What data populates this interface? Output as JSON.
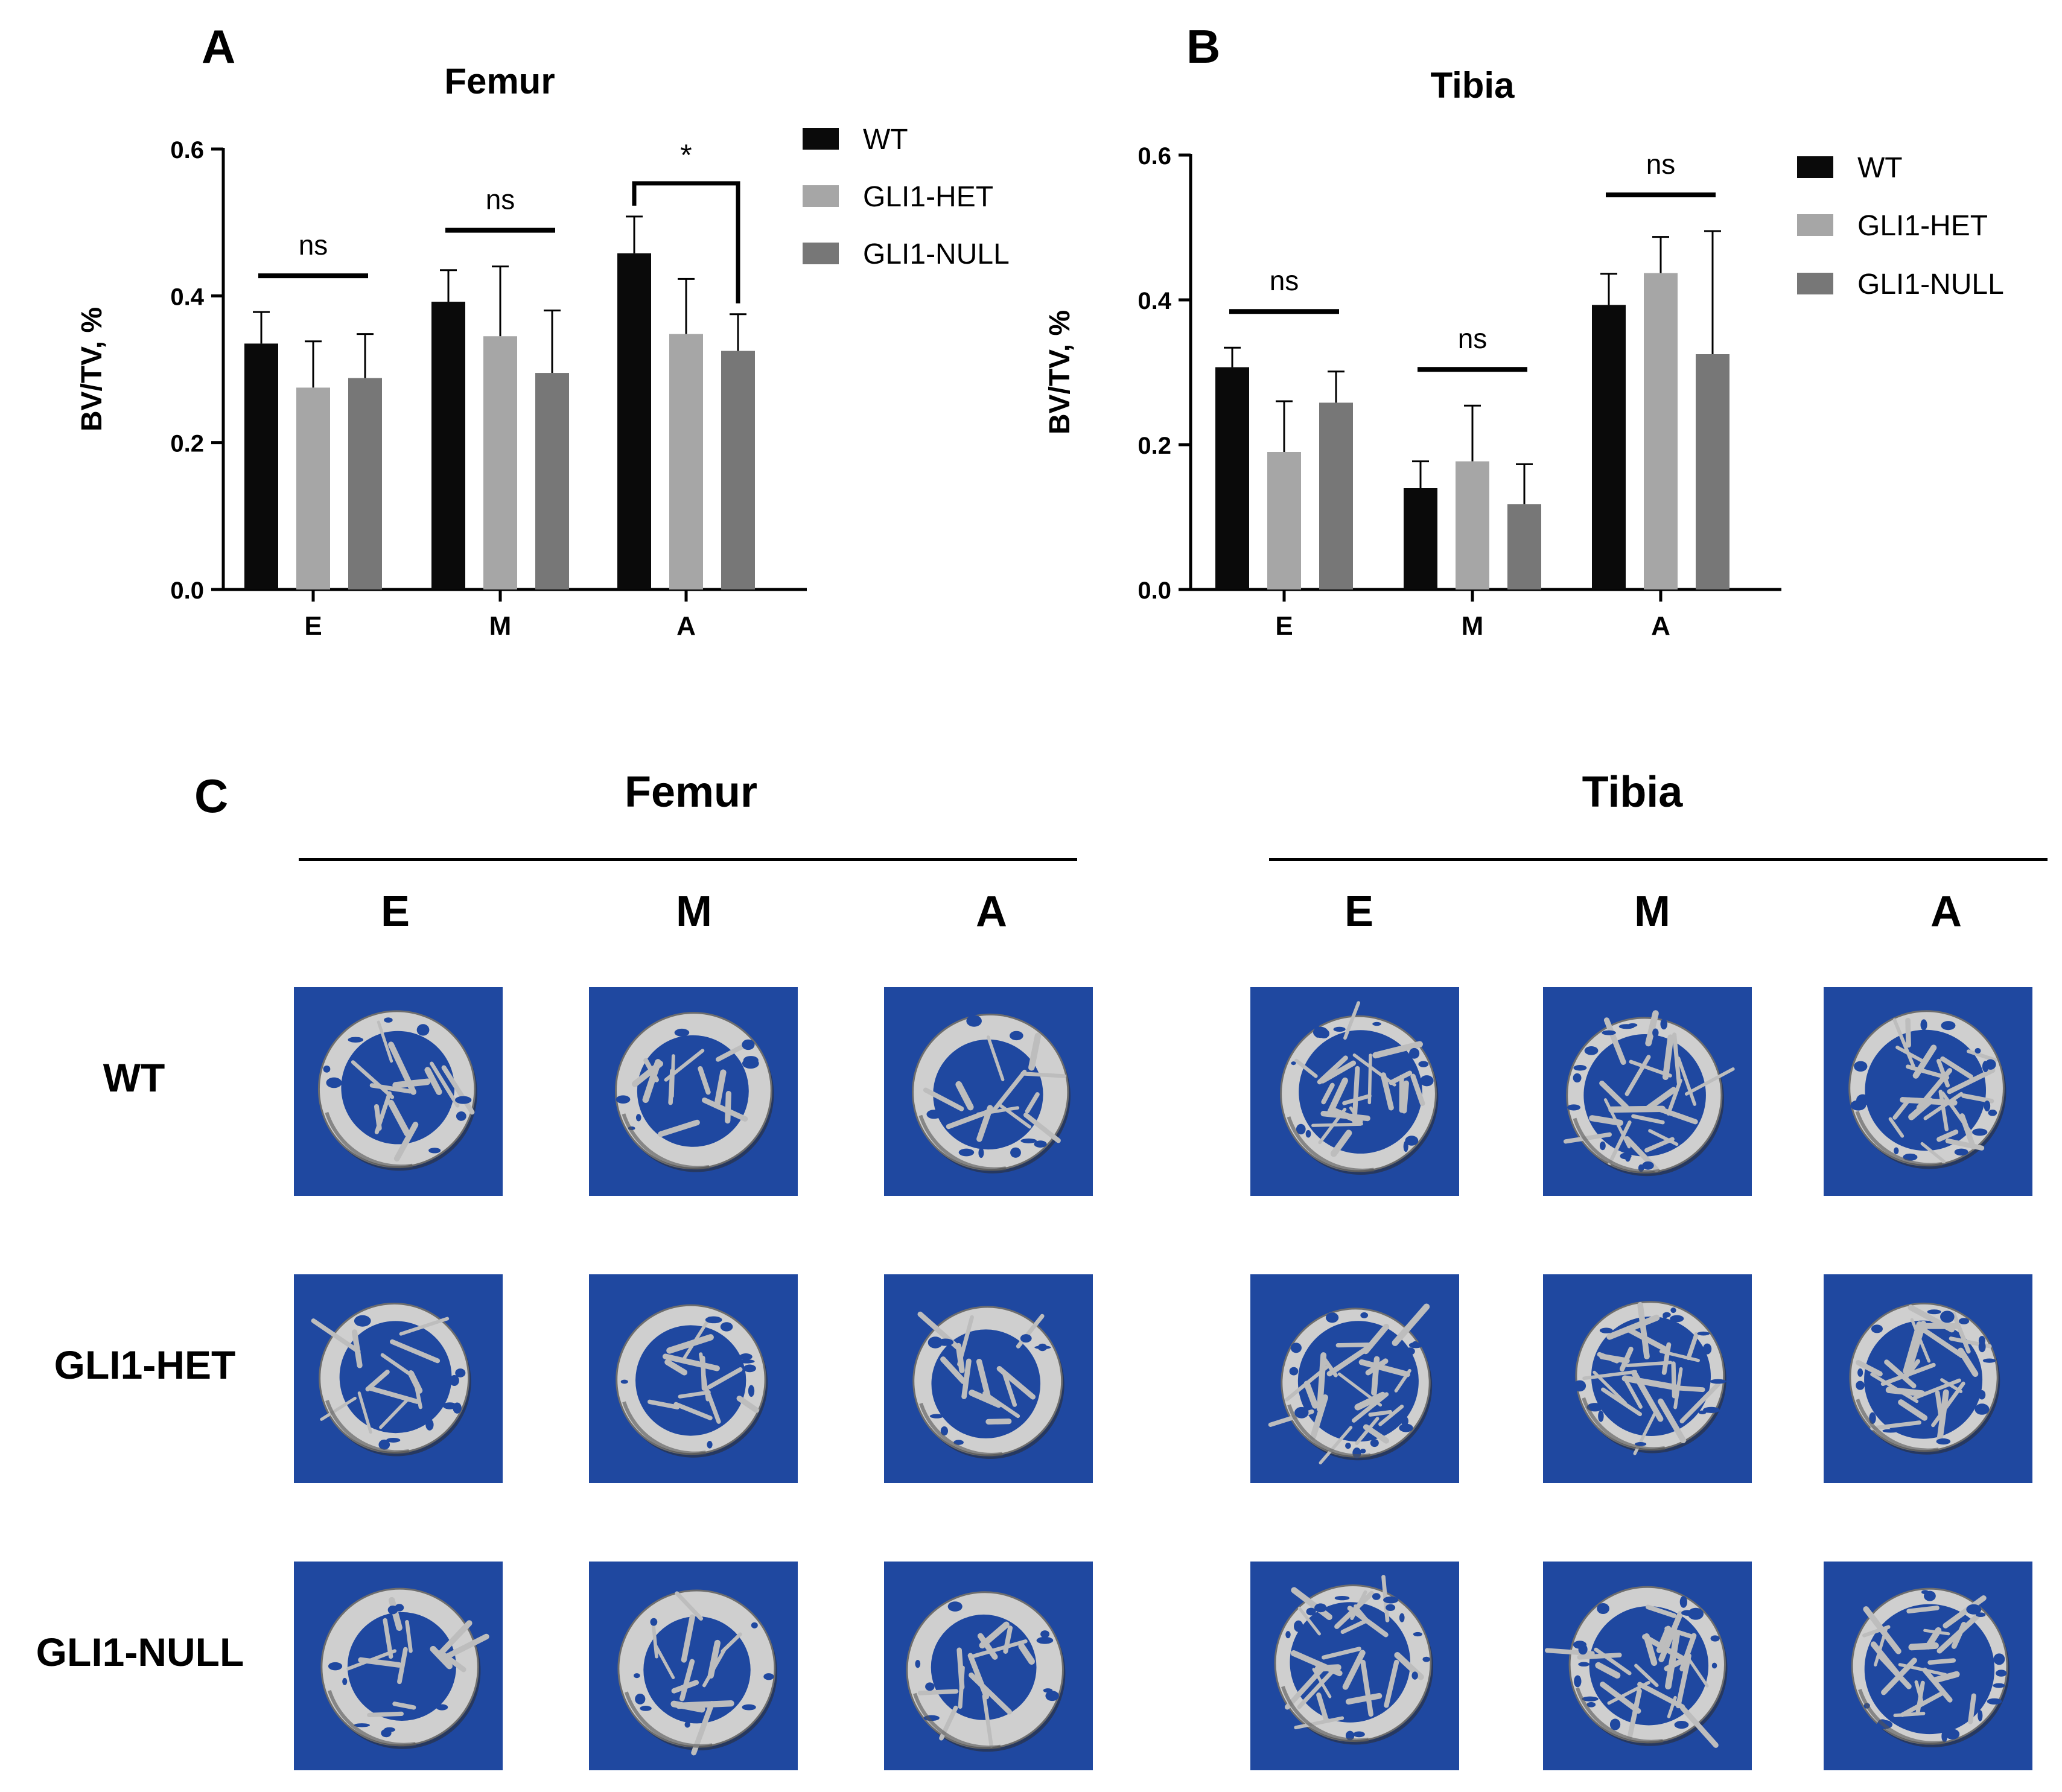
{
  "panel_letters": {
    "a": "A",
    "b": "B",
    "c": "C"
  },
  "colors": {
    "WT": "#0a0a0a",
    "GLI1-HET": "#a6a6a6",
    "GLI1-NULL": "#777777",
    "scan_bg": "#1f48a0",
    "bone": "#c9c9c9"
  },
  "chart_data": [
    {
      "type": "bar",
      "title": "Femur",
      "xlabel": "",
      "ylabel": "BV/TV, %",
      "categories": [
        "E",
        "M",
        "A"
      ],
      "ylim": [
        0,
        0.6
      ],
      "yticks": [
        "0.0",
        "0.2",
        "0.4",
        "0.6"
      ],
      "series": [
        {
          "name": "WT",
          "values": [
            0.335,
            0.392,
            0.458
          ],
          "errors": [
            0.043,
            0.043,
            0.05
          ]
        },
        {
          "name": "GLI1-HET",
          "values": [
            0.275,
            0.345,
            0.348
          ],
          "errors": [
            0.063,
            0.095,
            0.075
          ]
        },
        {
          "name": "GLI1-NULL",
          "values": [
            0.288,
            0.295,
            0.325
          ],
          "errors": [
            0.06,
            0.085,
            0.05
          ]
        }
      ],
      "annotations": [
        {
          "category": "E",
          "text": "ns"
        },
        {
          "category": "M",
          "text": "ns"
        },
        {
          "category": "A",
          "text": "*"
        }
      ],
      "legend": "right"
    },
    {
      "type": "bar",
      "title": "Tibia",
      "xlabel": "",
      "ylabel": "BV/TV, %",
      "categories": [
        "E",
        "M",
        "A"
      ],
      "ylim": [
        0,
        0.6
      ],
      "yticks": [
        "0.0",
        "0.2",
        "0.4",
        "0.6"
      ],
      "series": [
        {
          "name": "WT",
          "values": [
            0.307,
            0.14,
            0.393
          ],
          "errors": [
            0.027,
            0.037,
            0.043
          ]
        },
        {
          "name": "GLI1-HET",
          "values": [
            0.19,
            0.177,
            0.437
          ],
          "errors": [
            0.07,
            0.077,
            0.05
          ]
        },
        {
          "name": "GLI1-NULL",
          "values": [
            0.258,
            0.118,
            0.325
          ],
          "errors": [
            0.043,
            0.055,
            0.17
          ]
        }
      ],
      "annotations": [
        {
          "category": "E",
          "text": "ns"
        },
        {
          "category": "M",
          "text": "ns"
        },
        {
          "category": "A",
          "text": "ns"
        }
      ],
      "legend": "right"
    }
  ],
  "figure_c": {
    "groups": [
      {
        "title": "Femur",
        "columns": [
          "E",
          "M",
          "A"
        ]
      },
      {
        "title": "Tibia",
        "columns": [
          "E",
          "M",
          "A"
        ]
      }
    ],
    "rows": [
      "WT",
      "GLI1-HET",
      "GLI1-NULL"
    ]
  }
}
